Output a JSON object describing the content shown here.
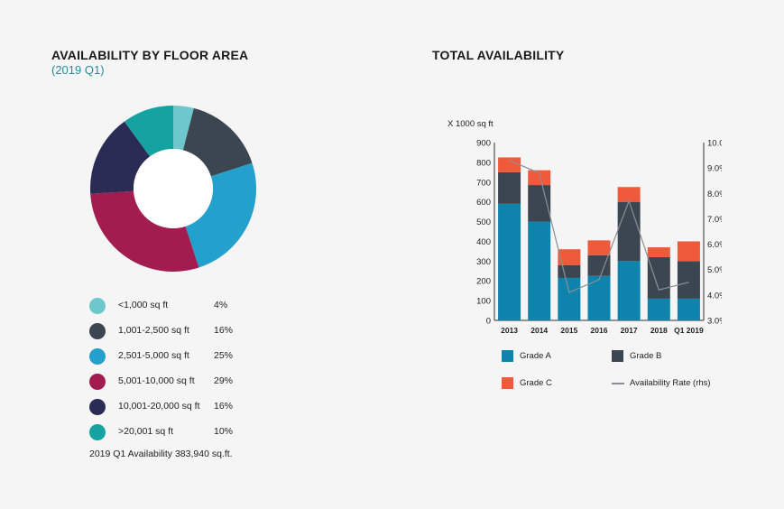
{
  "left": {
    "title": "AVAILABILITY BY FLOOR AREA",
    "subtitle": "(2019 Q1)",
    "note": "2019 Q1 Availability 383,940 sq.ft."
  },
  "right": {
    "title": "TOTAL AVAILABILITY"
  },
  "chart_data": [
    {
      "type": "pie",
      "title": "AVAILABILITY BY FLOOR AREA",
      "subtitle": "(2019 Q1)",
      "donut": true,
      "slices": [
        {
          "label": "<1,000 sq ft",
          "value": 4,
          "value_label": "4%",
          "color": "#6dc7cc"
        },
        {
          "label": "1,001-2,500 sq ft",
          "value": 16,
          "value_label": "16%",
          "color": "#3c4650"
        },
        {
          "label": "2,501-5,000 sq ft",
          "value": 25,
          "value_label": "25%",
          "color": "#24a0cd"
        },
        {
          "label": "5,001-10,000 sq ft",
          "value": 29,
          "value_label": "29%",
          "color": "#a21c4f"
        },
        {
          "label": "10,001-20,000 sq ft",
          "value": 16,
          "value_label": "16%",
          "color": "#2b2c55"
        },
        {
          "label": ">20,001 sq ft",
          "value": 10,
          "value_label": "10%",
          "color": "#15a3a1"
        }
      ],
      "legend_position": "bottom"
    },
    {
      "type": "bar",
      "stacked": true,
      "title": "TOTAL AVAILABILITY",
      "ylabel": "X 1000 sq ft",
      "categories": [
        "2013",
        "2014",
        "2015",
        "2016",
        "2017",
        "2018",
        "Q1 2019"
      ],
      "ylim": [
        0,
        900
      ],
      "yticks": [
        "0",
        "100",
        "200",
        "300",
        "400",
        "500",
        "600",
        "700",
        "800",
        "900"
      ],
      "y2lim": [
        3.0,
        10.0
      ],
      "y2ticks": [
        "3.0%",
        "4.0%",
        "5.0%",
        "6.0%",
        "7.0%",
        "8.0%",
        "9.0%",
        "10.0%"
      ],
      "grid": false,
      "legend_position": "bottom",
      "series": [
        {
          "name": "Grade A",
          "color": "#0e84ad",
          "values": [
            590,
            500,
            215,
            225,
            300,
            110,
            110
          ]
        },
        {
          "name": "Grade B",
          "color": "#3c4650",
          "values": [
            160,
            185,
            65,
            105,
            300,
            210,
            190
          ]
        },
        {
          "name": "Grade C",
          "color": "#ee5a3a",
          "values": [
            75,
            75,
            80,
            75,
            75,
            50,
            100
          ]
        },
        {
          "name": "Availability Rate (rhs)",
          "type": "line",
          "axis": "right",
          "color": "#8a8f96",
          "values": [
            9.3,
            8.8,
            4.1,
            4.6,
            7.7,
            4.2,
            4.5
          ]
        }
      ]
    }
  ]
}
